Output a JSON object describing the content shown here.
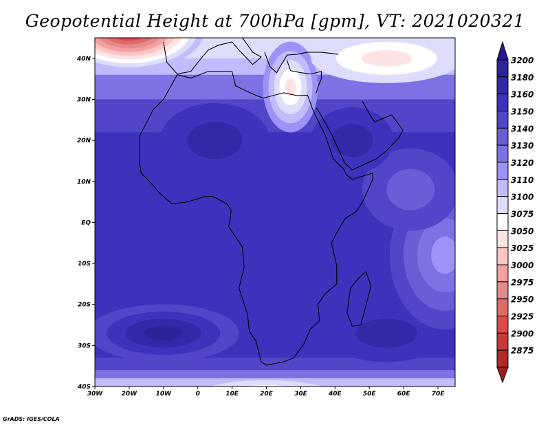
{
  "title": "Geopotential Height at 700hPa [gpm], VT: 2021020321",
  "credit": "GrADS: IGES/COLA",
  "map": {
    "lon_range": [
      -30,
      75
    ],
    "lat_range": [
      -40,
      45
    ],
    "x_ticks": [
      {
        "lon": -30,
        "label": "30W"
      },
      {
        "lon": -20,
        "label": "20W"
      },
      {
        "lon": -10,
        "label": "10W"
      },
      {
        "lon": 0,
        "label": "0"
      },
      {
        "lon": 10,
        "label": "10E"
      },
      {
        "lon": 20,
        "label": "20E"
      },
      {
        "lon": 30,
        "label": "30E"
      },
      {
        "lon": 40,
        "label": "40E"
      },
      {
        "lon": 50,
        "label": "50E"
      },
      {
        "lon": 60,
        "label": "60E"
      },
      {
        "lon": 70,
        "label": "70E"
      }
    ],
    "y_ticks": [
      {
        "lat": 40,
        "label": "40N"
      },
      {
        "lat": 30,
        "label": "30N"
      },
      {
        "lat": 20,
        "label": "20N"
      },
      {
        "lat": 10,
        "label": "10N"
      },
      {
        "lat": 0,
        "label": "EQ"
      },
      {
        "lat": -10,
        "label": "10S"
      },
      {
        "lat": -20,
        "label": "20S"
      },
      {
        "lat": -30,
        "label": "30S"
      },
      {
        "lat": -40,
        "label": "40S"
      }
    ]
  },
  "colorbar": {
    "top_arrow_color": "#2a1890",
    "bottom_arrow_color": "#a01c1c",
    "levels": [
      {
        "label": "3200",
        "color": "#2c2398"
      },
      {
        "label": "3180",
        "color": "#3229a8"
      },
      {
        "label": "3160",
        "color": "#3c32bc"
      },
      {
        "label": "3150",
        "color": "#5246c8"
      },
      {
        "label": "3140",
        "color": "#6a5ed6"
      },
      {
        "label": "3130",
        "color": "#7c72e4"
      },
      {
        "label": "3120",
        "color": "#9c92f8"
      },
      {
        "label": "3110",
        "color": "#c2bcfc"
      },
      {
        "label": "3100",
        "color": "#dedefc"
      },
      {
        "label": "3075",
        "color": "#ffffff"
      },
      {
        "label": "3050",
        "color": "#fde4e4"
      },
      {
        "label": "3025",
        "color": "#fcc6c6"
      },
      {
        "label": "3000",
        "color": "#f4a0a0"
      },
      {
        "label": "2975",
        "color": "#e48a8a"
      },
      {
        "label": "2950",
        "color": "#e06a6a"
      },
      {
        "label": "2925",
        "color": "#e04a4a"
      },
      {
        "label": "2900",
        "color": "#c83a3a"
      },
      {
        "label": "2875",
        "color": "#b02828"
      }
    ]
  }
}
